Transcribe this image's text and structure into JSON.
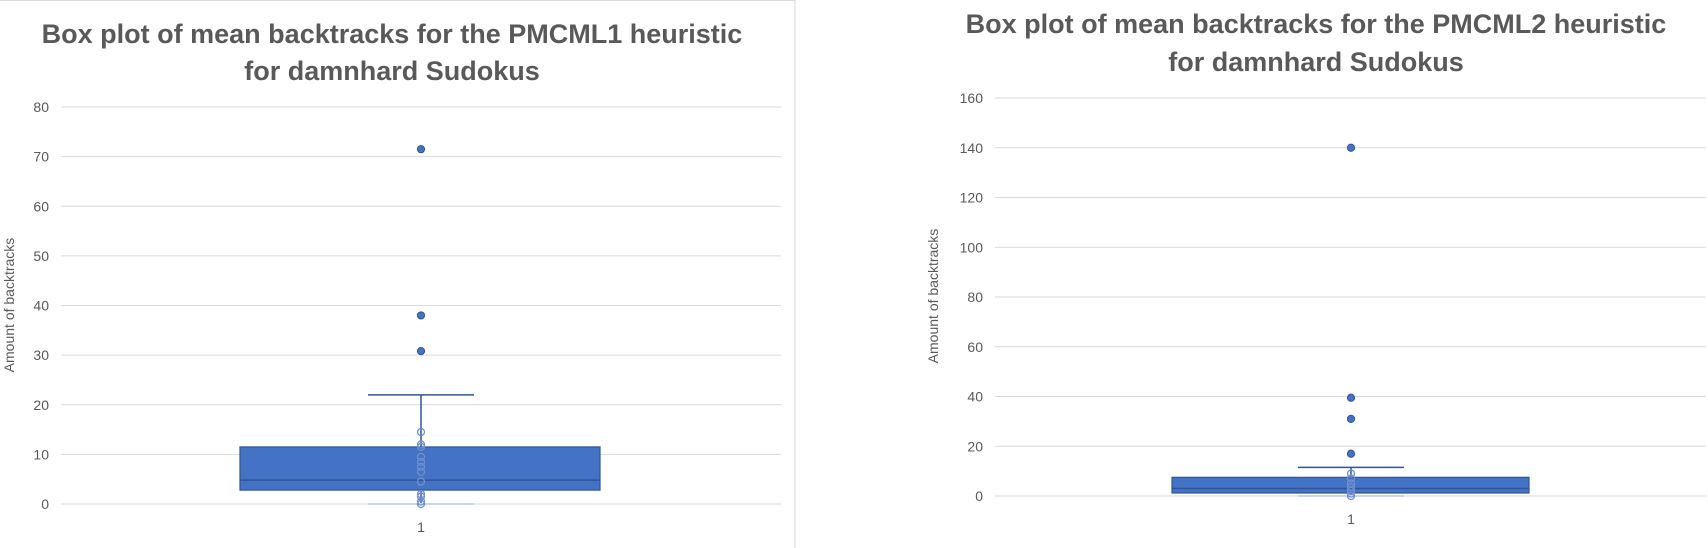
{
  "colors": {
    "box": "#4472c4",
    "box_edge": "#2f5597",
    "grid": "#d9d9d9",
    "text": "#595959"
  },
  "chart_data": [
    {
      "type": "box",
      "title_lines": [
        "Box plot of mean backtracks for the PMCML1 heuristic",
        "for damnhard Sudokus"
      ],
      "ylabel": "Amount of backtracks",
      "xlabel": "",
      "categories": [
        "1"
      ],
      "ylim": [
        0,
        80
      ],
      "yticks": [
        0,
        10,
        20,
        30,
        40,
        50,
        60,
        70,
        80
      ],
      "grid": true,
      "box": {
        "q1": 2.8,
        "median": 4.8,
        "q3": 11.5,
        "whisker_low": 0,
        "whisker_high": 22
      },
      "points": [
        0,
        0.5,
        1.5,
        2,
        4.5,
        6.5,
        7.5,
        8.5,
        9.5,
        11.5,
        12,
        14.5
      ],
      "outliers": [
        30.8,
        38,
        71.5
      ]
    },
    {
      "type": "box",
      "title_lines": [
        "Box plot of mean backtracks for the PMCML2 heuristic",
        "for damnhard Sudokus"
      ],
      "ylabel": "Amount of backtracks",
      "xlabel": "",
      "categories": [
        "1"
      ],
      "ylim": [
        0,
        160
      ],
      "yticks": [
        0,
        20,
        40,
        60,
        80,
        100,
        120,
        140,
        160
      ],
      "grid": true,
      "box": {
        "q1": 1.2,
        "median": 3,
        "q3": 7.5,
        "whisker_low": 0,
        "whisker_high": 11.5
      },
      "points": [
        0,
        1,
        2,
        3.5,
        5,
        7,
        9
      ],
      "outliers": [
        17,
        31,
        39.5,
        140
      ]
    }
  ]
}
